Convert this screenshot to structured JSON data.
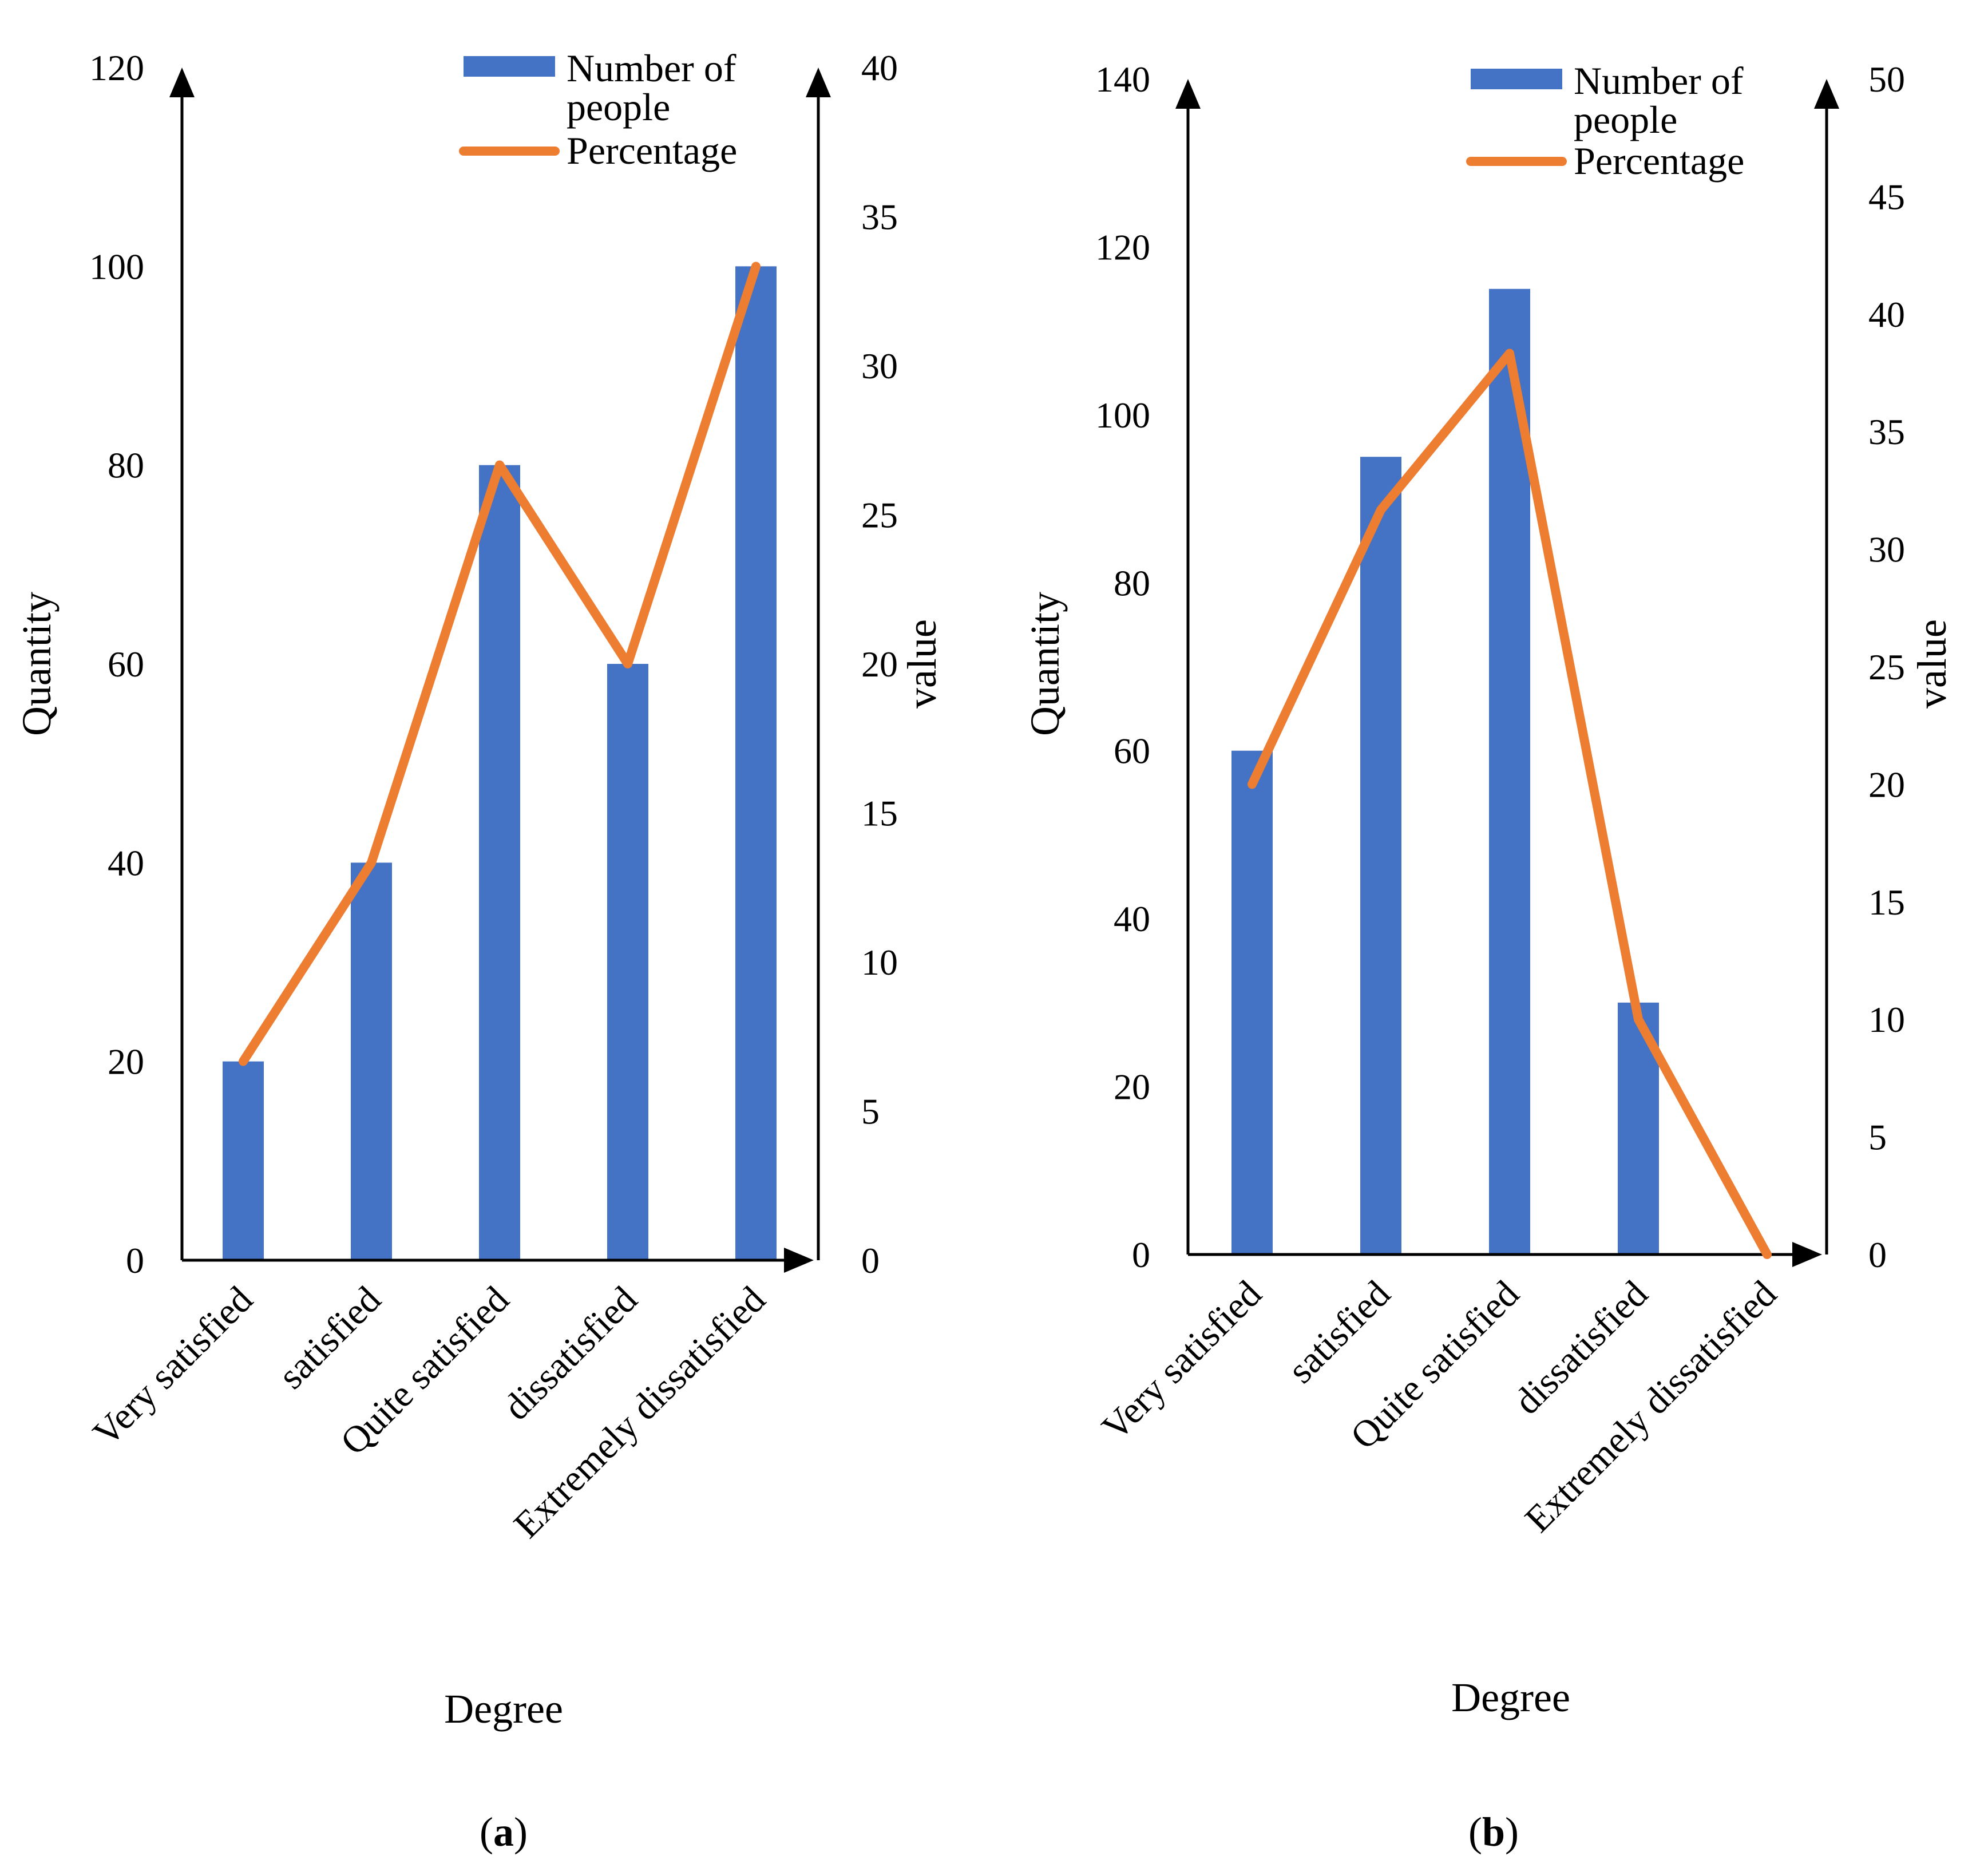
{
  "colors": {
    "bar": "#4472C4",
    "line": "#ED7D31",
    "axis": "#000000"
  },
  "chart_data": [
    {
      "type": "bar+line",
      "panel_label": {
        "open": "(",
        "letter": "a",
        "close": ")"
      },
      "categories": [
        "Very satisfied",
        "satisfied",
        "Quite satisfied",
        "dissatisfied",
        "Extremely dissatisfied"
      ],
      "series": [
        {
          "name": "Number of people",
          "type": "bar",
          "axis": "left",
          "values": [
            20,
            40,
            80,
            60,
            100
          ]
        },
        {
          "name": "Percentage",
          "type": "line",
          "axis": "right",
          "values": [
            6.67,
            13.33,
            26.67,
            20,
            33.33
          ]
        }
      ],
      "xlabel": "Degree",
      "ylabel": "Quantity",
      "y2label": "value",
      "ylim": [
        0,
        120
      ],
      "yticks": [
        0,
        20,
        40,
        60,
        80,
        100,
        120
      ],
      "y2lim": [
        0,
        40
      ],
      "y2ticks": [
        0,
        5,
        10,
        15,
        20,
        25,
        30,
        35,
        40
      ],
      "legend": {
        "placement": "top-right",
        "entries": [
          [
            "Number of",
            "people"
          ],
          [
            "Percentage"
          ]
        ]
      }
    },
    {
      "type": "bar+line",
      "panel_label": {
        "open": "(",
        "letter": "b",
        "close": ")"
      },
      "categories": [
        "Very satisfied",
        "satisfied",
        "Quite satisfied",
        "dissatisfied",
        "Extremely dissatisfied"
      ],
      "series": [
        {
          "name": "Number of people",
          "type": "bar",
          "axis": "left",
          "values": [
            60,
            95,
            115,
            30,
            0
          ]
        },
        {
          "name": "Percentage",
          "type": "line",
          "axis": "right",
          "values": [
            20,
            31.67,
            38.33,
            10,
            0
          ]
        }
      ],
      "xlabel": "Degree",
      "ylabel": "Quantity",
      "y2label": "value",
      "ylim": [
        0,
        140
      ],
      "yticks": [
        0,
        20,
        40,
        60,
        80,
        100,
        120,
        140
      ],
      "y2lim": [
        0,
        50
      ],
      "y2ticks": [
        0,
        5,
        10,
        15,
        20,
        25,
        30,
        35,
        40,
        45,
        50
      ],
      "legend": {
        "placement": "top-right",
        "entries": [
          [
            "Number of",
            "people"
          ],
          [
            "Percentage"
          ]
        ]
      }
    }
  ]
}
